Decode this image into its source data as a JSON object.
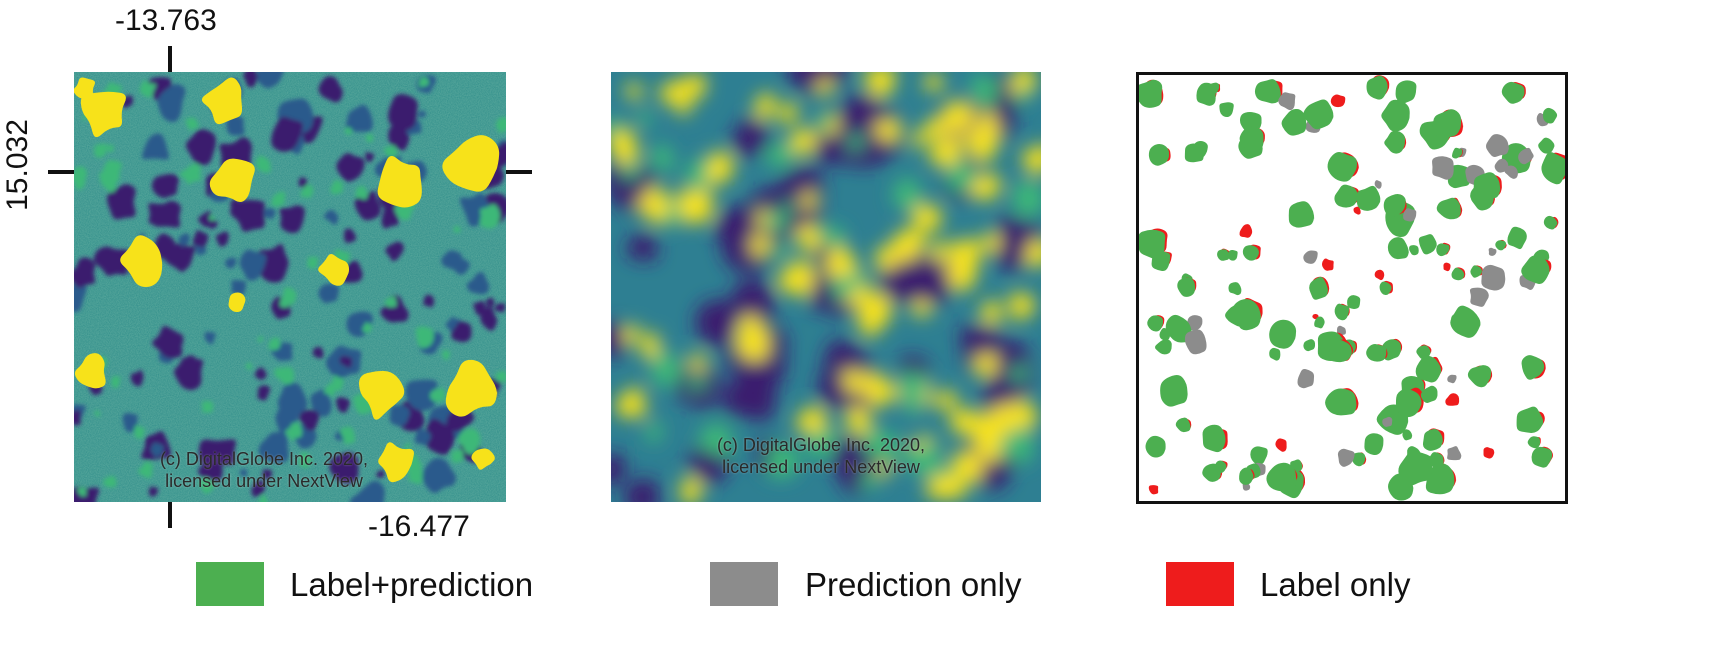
{
  "coordinates": {
    "top": "-13.763",
    "left": "15.032",
    "bottom": "-16.477"
  },
  "panels": [
    {
      "name": "nir-image",
      "credit_line1": "(c) DigitalGlobe Inc. 2020,",
      "credit_line2": "licensed under NextView"
    },
    {
      "name": "prediction-heatmap",
      "credit_line1": "(c) DigitalGlobe Inc. 2020,",
      "credit_line2": "licensed under NextView"
    },
    {
      "name": "comparison-map"
    }
  ],
  "legend": [
    {
      "label": "Label+prediction",
      "color": "#4caf50"
    },
    {
      "label": "Prediction only",
      "color": "#8c8c8c"
    },
    {
      "label": "Label only",
      "color": "#ee1c1c"
    }
  ],
  "colors": {
    "viridis_dark": "#3b1c6e",
    "viridis_mid": "#2a7f8e",
    "viridis_light": "#3cb878",
    "viridis_yellow": "#f7e21a"
  }
}
